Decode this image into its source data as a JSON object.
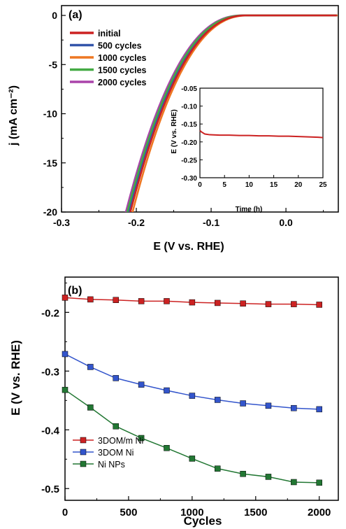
{
  "chart_data": [
    {
      "panel": "(a)",
      "type": "line",
      "xlabel": "E (V vs. RHE)",
      "ylabel": "j (mA cm⁻²)",
      "xlim": [
        -0.3,
        0.07
      ],
      "ylim": [
        -20,
        1
      ],
      "xticks": [
        "-0.3",
        "-0.2",
        "-0.1",
        "0.0"
      ],
      "yticks": [
        "0",
        "-5",
        "-10",
        "-15",
        "-20"
      ],
      "legend_position": "top-left",
      "series": [
        {
          "name": "initial",
          "color": "#cc2222",
          "onset": -0.052,
          "j20": -0.208
        },
        {
          "name": "500 cycles",
          "color": "#3355aa",
          "onset": -0.054,
          "j20": -0.21
        },
        {
          "name": "1000 cycles",
          "color": "#ee7722",
          "onset": -0.05,
          "j20": -0.205
        },
        {
          "name": "1500 cycles",
          "color": "#44aa44",
          "onset": -0.056,
          "j20": -0.212
        },
        {
          "name": "2000 cycles",
          "color": "#aa44aa",
          "onset": -0.058,
          "j20": -0.214
        }
      ],
      "inset": {
        "type": "line",
        "xlabel": "Time (h)",
        "ylabel": "E (V vs. RHE)",
        "xlim": [
          0,
          25
        ],
        "ylim": [
          -0.3,
          -0.05
        ],
        "xticks": [
          "0",
          "5",
          "10",
          "15",
          "20",
          "25"
        ],
        "yticks": [
          "-0.05",
          "-0.10",
          "-0.15",
          "-0.20",
          "-0.25",
          "-0.30"
        ],
        "color": "#cc2222",
        "x": [
          0,
          0.3,
          1,
          2,
          4,
          6,
          8,
          10,
          12,
          14,
          16,
          18,
          20,
          22,
          24,
          25
        ],
        "y": [
          -0.168,
          -0.172,
          -0.178,
          -0.18,
          -0.181,
          -0.181,
          -0.182,
          -0.182,
          -0.183,
          -0.183,
          -0.184,
          -0.184,
          -0.185,
          -0.186,
          -0.187,
          -0.188
        ]
      }
    },
    {
      "panel": "(b)",
      "type": "line",
      "xlabel": "Cycles",
      "ylabel": "E (V vs. RHE)",
      "xlim": [
        0,
        2150
      ],
      "ylim": [
        -0.52,
        -0.14
      ],
      "xticks": [
        "0",
        "500",
        "1000",
        "1500",
        "2000"
      ],
      "yticks": [
        "-0.2",
        "-0.3",
        "-0.4",
        "-0.5"
      ],
      "legend_position": "bottom-left",
      "x": [
        0,
        200,
        400,
        600,
        800,
        1000,
        1200,
        1400,
        1600,
        1800,
        2000
      ],
      "series": [
        {
          "name": "3DOM/m Ni",
          "color": "#cc2222",
          "values": [
            -0.175,
            -0.178,
            -0.179,
            -0.181,
            -0.181,
            -0.183,
            -0.184,
            -0.185,
            -0.186,
            -0.186,
            -0.187
          ]
        },
        {
          "name": "3DOM Ni",
          "color": "#3355cc",
          "values": [
            -0.271,
            -0.293,
            -0.312,
            -0.323,
            -0.333,
            -0.342,
            -0.349,
            -0.355,
            -0.359,
            -0.363,
            -0.365
          ]
        },
        {
          "name": "Ni NPs",
          "color": "#227733",
          "values": [
            -0.332,
            -0.362,
            -0.394,
            -0.414,
            -0.431,
            -0.449,
            -0.466,
            -0.475,
            -0.48,
            -0.489,
            -0.49
          ]
        }
      ]
    }
  ]
}
